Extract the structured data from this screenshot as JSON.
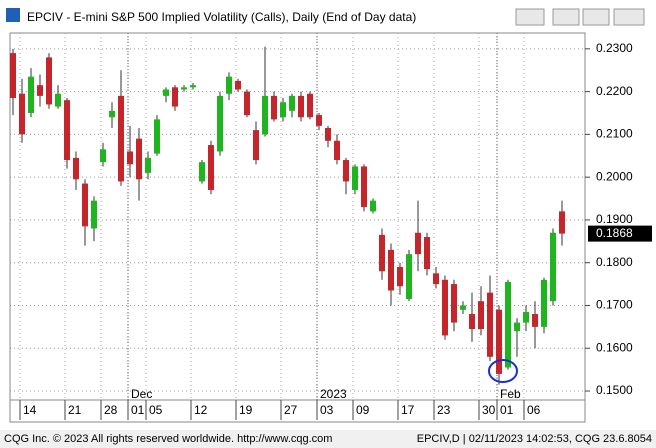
{
  "chart_data": {
    "type": "candlestick",
    "title": "EPCIV - E-mini S&P 500 Implied Volatility (Calls), Daily (End of Day data)",
    "categories": [
      null,
      "14",
      null,
      null,
      null,
      null,
      "21",
      null,
      null,
      null,
      "28",
      null,
      null,
      "01",
      null,
      "05",
      null,
      null,
      null,
      null,
      "12",
      null,
      null,
      null,
      null,
      "19",
      null,
      null,
      null,
      null,
      "27",
      null,
      null,
      null,
      "03",
      null,
      null,
      null,
      "09",
      null,
      null,
      null,
      null,
      "17",
      null,
      null,
      null,
      "23",
      null,
      null,
      null,
      null,
      "30",
      null,
      "01",
      null,
      null,
      "06",
      null,
      null,
      null,
      null
    ],
    "period_labels": [
      null,
      null,
      null,
      null,
      null,
      null,
      null,
      null,
      null,
      null,
      null,
      null,
      null,
      "Dec",
      null,
      null,
      null,
      null,
      null,
      null,
      null,
      null,
      null,
      null,
      null,
      null,
      null,
      null,
      null,
      null,
      null,
      null,
      null,
      null,
      "2023",
      null,
      null,
      null,
      null,
      null,
      null,
      null,
      null,
      null,
      null,
      null,
      null,
      null,
      null,
      null,
      null,
      null,
      null,
      null,
      "Feb",
      null,
      null,
      null,
      null,
      null,
      null,
      null
    ],
    "series": {
      "open": [
        0.229,
        0.2195,
        0.215,
        0.2215,
        0.228,
        0.2165,
        0.218,
        0.2045,
        0.1985,
        0.188,
        0.2035,
        0.214,
        0.219,
        0.206,
        0.209,
        0.201,
        0.2055,
        0.219,
        0.221,
        0.2205,
        0.221,
        0.199,
        0.2075,
        0.206,
        0.2195,
        0.2225,
        0.22,
        0.211,
        0.21,
        0.219,
        0.214,
        0.2155,
        0.219,
        0.2195,
        0.2145,
        0.2115,
        0.2085,
        0.204,
        0.197,
        0.2025,
        0.192,
        0.1865,
        0.183,
        0.179,
        0.1715,
        0.187,
        0.186,
        0.1775,
        0.176,
        0.175,
        0.169,
        0.168,
        0.171,
        0.173,
        0.169,
        0.1555,
        0.164,
        0.166,
        0.168,
        0.165,
        0.171,
        0.192
      ],
      "high": [
        0.23,
        0.223,
        0.2255,
        0.224,
        0.229,
        0.2215,
        0.2185,
        0.206,
        0.1995,
        0.1955,
        0.208,
        0.2175,
        0.225,
        0.212,
        0.2115,
        0.206,
        0.2145,
        0.221,
        0.2215,
        0.2215,
        0.222,
        0.204,
        0.2085,
        0.22,
        0.2245,
        0.223,
        0.2205,
        0.213,
        0.2305,
        0.22,
        0.2185,
        0.2195,
        0.22,
        0.22,
        0.215,
        0.212,
        0.21,
        0.2045,
        0.203,
        0.203,
        0.195,
        0.188,
        0.1845,
        0.18,
        0.183,
        0.1945,
        0.187,
        0.179,
        0.177,
        0.176,
        0.171,
        0.173,
        0.1745,
        0.177,
        0.17,
        0.176,
        0.167,
        0.17,
        0.171,
        0.1765,
        0.188,
        0.1945
      ],
      "low": [
        0.2145,
        0.208,
        0.214,
        0.2165,
        0.216,
        0.216,
        0.202,
        0.197,
        0.184,
        0.185,
        0.2025,
        0.2115,
        0.198,
        0.2,
        0.1945,
        0.1995,
        0.205,
        0.2175,
        0.2155,
        0.22,
        0.2205,
        0.1985,
        0.196,
        0.205,
        0.218,
        0.22,
        0.214,
        0.203,
        0.2095,
        0.213,
        0.213,
        0.214,
        0.213,
        0.2135,
        0.211,
        0.207,
        0.203,
        0.196,
        0.196,
        0.192,
        0.1915,
        0.176,
        0.17,
        0.1725,
        0.171,
        0.178,
        0.177,
        0.174,
        0.162,
        0.164,
        0.168,
        0.1615,
        0.163,
        0.157,
        0.1515,
        0.155,
        0.158,
        0.164,
        0.16,
        0.1635,
        0.17,
        0.184
      ],
      "close": [
        0.2185,
        0.21,
        0.2235,
        0.219,
        0.217,
        0.2195,
        0.204,
        0.1995,
        0.1885,
        0.1945,
        0.2065,
        0.2155,
        0.199,
        0.203,
        0.1995,
        0.2045,
        0.2135,
        0.2205,
        0.2165,
        0.221,
        0.2215,
        0.2035,
        0.197,
        0.219,
        0.2235,
        0.2205,
        0.2145,
        0.204,
        0.219,
        0.2135,
        0.2175,
        0.219,
        0.214,
        0.214,
        0.212,
        0.2085,
        0.204,
        0.199,
        0.2025,
        0.193,
        0.1945,
        0.178,
        0.1735,
        0.1745,
        0.182,
        0.182,
        0.1785,
        0.175,
        0.163,
        0.166,
        0.17,
        0.1645,
        0.1645,
        0.158,
        0.154,
        0.1755,
        0.166,
        0.1685,
        0.165,
        0.176,
        0.187,
        0.1868
      ]
    },
    "up_color": "#1fb51f",
    "down_color": "#c4262c",
    "ylim": [
      0.1479,
      0.2337
    ],
    "yticks": [
      {
        "value": 0.15,
        "label": "0.1500"
      },
      {
        "value": 0.16,
        "label": "0.1600"
      },
      {
        "value": 0.17,
        "label": "0.1700"
      },
      {
        "value": 0.18,
        "label": "0.1800"
      },
      {
        "value": 0.19,
        "label": "0.1900"
      },
      {
        "value": 0.2,
        "label": "0.2000"
      },
      {
        "value": 0.21,
        "label": "0.2100"
      },
      {
        "value": 0.22,
        "label": "0.2200"
      },
      {
        "value": 0.23,
        "label": "0.2300"
      }
    ],
    "last_price": {
      "value": 0.1868,
      "label": "0.1868"
    },
    "grid": true
  },
  "footer": {
    "left": "CQG Inc. © 2023 All rights reserved worldwide. http://www.cqg.com",
    "right": "EPCIV,D | 02/11/2023 14:02:53, CQG 23.6.8054"
  }
}
